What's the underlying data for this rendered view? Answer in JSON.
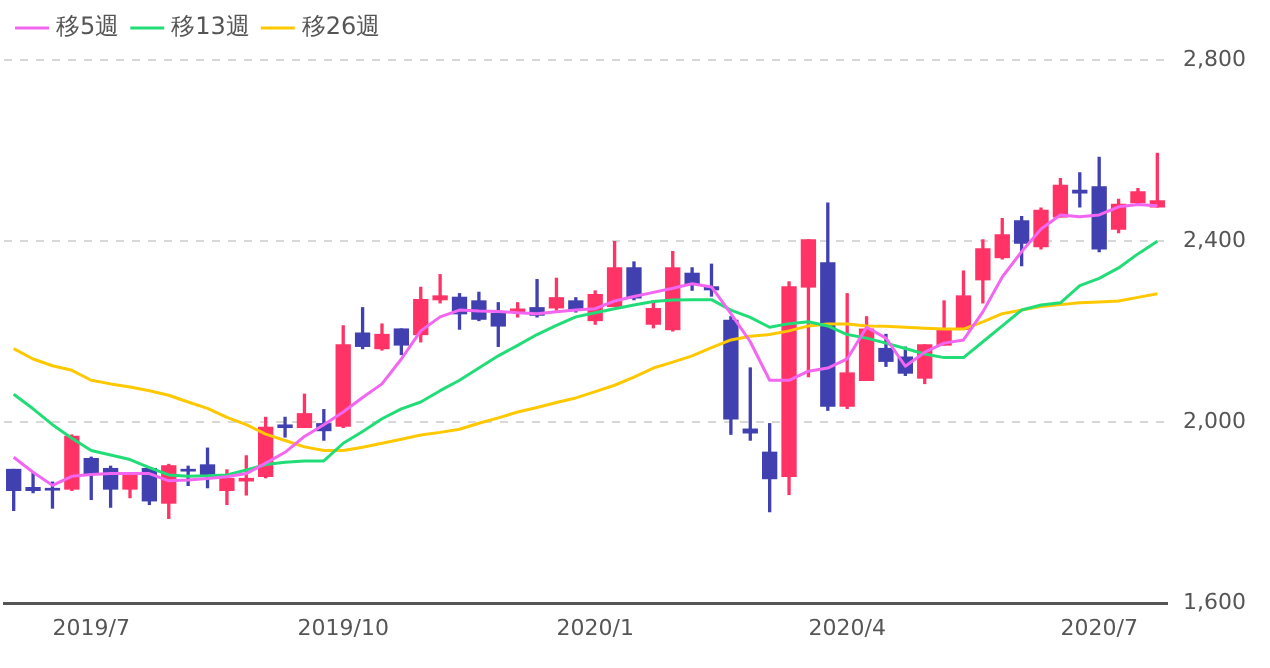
{
  "chart_data": {
    "type": "candlestick",
    "categories": [
      null,
      null,
      null,
      null,
      "2019/7",
      null,
      null,
      null,
      null,
      null,
      null,
      null,
      null,
      null,
      null,
      null,
      null,
      "2019/10",
      null,
      null,
      null,
      null,
      null,
      null,
      null,
      null,
      null,
      null,
      null,
      null,
      "2020/1",
      null,
      null,
      null,
      null,
      null,
      null,
      null,
      null,
      null,
      null,
      null,
      null,
      "2020/4",
      null,
      null,
      null,
      null,
      null,
      null,
      null,
      null,
      null,
      null,
      null,
      null,
      "2020/7",
      null,
      null,
      null
    ],
    "ohlc": [
      [
        1896,
        1896,
        1806,
        1850
      ],
      [
        1856,
        1887,
        1845,
        1850
      ],
      [
        1854,
        1868,
        1811,
        1851
      ],
      [
        1853,
        1972,
        1850,
        1969
      ],
      [
        1920,
        1923,
        1830,
        1887
      ],
      [
        1898,
        1903,
        1813,
        1853
      ],
      [
        1853,
        1887,
        1834,
        1887
      ],
      [
        1898,
        1898,
        1819,
        1827
      ],
      [
        1822,
        1907,
        1788,
        1904
      ],
      [
        1896,
        1903,
        1861,
        1893
      ],
      [
        1906,
        1943,
        1856,
        1884
      ],
      [
        1850,
        1895,
        1819,
        1876
      ],
      [
        1871,
        1926,
        1840,
        1876
      ],
      [
        1881,
        2011,
        1878,
        1989
      ],
      [
        1994,
        2011,
        1968,
        1989
      ],
      [
        1989,
        2062,
        1989,
        2019
      ],
      [
        1997,
        2028,
        1961,
        1982
      ],
      [
        1992,
        2213,
        1989,
        2171
      ],
      [
        2197,
        2253,
        2163,
        2168
      ],
      [
        2163,
        2217,
        2160,
        2194
      ],
      [
        2206,
        2206,
        2150,
        2171
      ],
      [
        2194,
        2298,
        2178,
        2271
      ],
      [
        2271,
        2326,
        2264,
        2279
      ],
      [
        2276,
        2284,
        2206,
        2240
      ],
      [
        2268,
        2287,
        2225,
        2228
      ],
      [
        2240,
        2264,
        2168,
        2213
      ],
      [
        2245,
        2264,
        2233,
        2250
      ],
      [
        2253,
        2315,
        2233,
        2237
      ],
      [
        2253,
        2318,
        2248,
        2275
      ],
      [
        2268,
        2275,
        2244,
        2250
      ],
      [
        2225,
        2290,
        2217,
        2282
      ],
      [
        2256,
        2399,
        2256,
        2341
      ],
      [
        2341,
        2354,
        2271,
        2275
      ],
      [
        2217,
        2268,
        2209,
        2251
      ],
      [
        2205,
        2377,
        2202,
        2341
      ],
      [
        2329,
        2341,
        2292,
        2306
      ],
      [
        2299,
        2349,
        2279,
        2293
      ],
      [
        2225,
        2233,
        1974,
        2008
      ],
      [
        1985,
        2120,
        1961,
        1977
      ],
      [
        1934,
        1997,
        1803,
        1876
      ],
      [
        1881,
        2310,
        1841,
        2299
      ],
      [
        2299,
        2403,
        2101,
        2403
      ],
      [
        2352,
        2484,
        2027,
        2036
      ],
      [
        2036,
        2284,
        2031,
        2109
      ],
      [
        2093,
        2233,
        2093,
        2206
      ],
      [
        2163,
        2194,
        2124,
        2135
      ],
      [
        2144,
        2166,
        2104,
        2109
      ],
      [
        2098,
        2171,
        2086,
        2171
      ],
      [
        2171,
        2268,
        2171,
        2206
      ],
      [
        2206,
        2334,
        2206,
        2279
      ],
      [
        2315,
        2403,
        2264,
        2383
      ],
      [
        2364,
        2450,
        2361,
        2414
      ],
      [
        2445,
        2454,
        2346,
        2396
      ],
      [
        2388,
        2473,
        2383,
        2468
      ],
      [
        2454,
        2538,
        2454,
        2523
      ],
      [
        2512,
        2551,
        2476,
        2507
      ],
      [
        2520,
        2585,
        2377,
        2383
      ],
      [
        2427,
        2492,
        2419,
        2481
      ],
      [
        2485,
        2516,
        2481,
        2509
      ],
      [
        2476,
        2594,
        2476,
        2489
      ]
    ],
    "colors": [
      "#4040b0",
      "#4040b0",
      "#4040b0",
      "#ff3366",
      "#4040b0",
      "#4040b0",
      "#ff3366",
      "#4040b0",
      "#ff3366",
      "#4040b0",
      "#4040b0",
      "#ff3366",
      "#ff3366",
      "#ff3366",
      "#4040b0",
      "#ff3366",
      "#4040b0",
      "#ff3366",
      "#4040b0",
      "#ff3366",
      "#4040b0",
      "#ff3366",
      "#ff3366",
      "#4040b0",
      "#4040b0",
      "#4040b0",
      "#ff3366",
      "#4040b0",
      "#ff3366",
      "#4040b0",
      "#ff3366",
      "#ff3366",
      "#4040b0",
      "#ff3366",
      "#ff3366",
      "#4040b0",
      "#4040b0",
      "#4040b0",
      "#4040b0",
      "#4040b0",
      "#ff3366",
      "#ff3366",
      "#4040b0",
      "#ff3366",
      "#ff3366",
      "#4040b0",
      "#4040b0",
      "#ff3366",
      "#ff3366",
      "#ff3366",
      "#ff3366",
      "#ff3366",
      "#4040b0",
      "#ff3366",
      "#ff3366",
      "#4040b0",
      "#4040b0",
      "#ff3366",
      "#ff3366",
      "#ff3366"
    ],
    "series": [
      {
        "name": "移5週",
        "type": "line",
        "color": "#f266f2",
        "values": [
          1923,
          1890,
          1861,
          1881,
          1885,
          1887,
          1887,
          1887,
          1871,
          1873,
          1876,
          1880,
          1887,
          1910,
          1934,
          1969,
          1995,
          2023,
          2055,
          2085,
          2140,
          2202,
          2233,
          2248,
          2246,
          2245,
          2242,
          2240,
          2244,
          2248,
          2251,
          2268,
          2278,
          2287,
          2296,
          2306,
          2299,
          2240,
          2178,
          2093,
          2093,
          2113,
          2120,
          2140,
          2210,
          2186,
          2124,
          2155,
          2175,
          2182,
          2244,
          2321,
          2377,
          2427,
          2458,
          2454,
          2458,
          2476,
          2481,
          2478
        ]
      },
      {
        "name": "移13週",
        "type": "line",
        "color": "#22dd77",
        "values": [
          2062,
          2030,
          1995,
          1965,
          1938,
          1928,
          1918,
          1900,
          1884,
          1881,
          1882,
          1884,
          1895,
          1907,
          1912,
          1915,
          1915,
          1954,
          1980,
          2008,
          2030,
          2045,
          2070,
          2093,
          2120,
          2147,
          2170,
          2194,
          2214,
          2233,
          2242,
          2251,
          2259,
          2267,
          2270,
          2271,
          2271,
          2248,
          2232,
          2210,
          2218,
          2222,
          2213,
          2194,
          2186,
          2175,
          2163,
          2151,
          2143,
          2143,
          2178,
          2213,
          2248,
          2259,
          2264,
          2302,
          2318,
          2341,
          2372,
          2400
        ]
      },
      {
        "name": "移26週",
        "type": "line",
        "color": "#ffc800",
        "values": [
          2163,
          2140,
          2125,
          2115,
          2093,
          2085,
          2078,
          2070,
          2060,
          2045,
          2031,
          2011,
          1995,
          1974,
          1960,
          1946,
          1938,
          1938,
          1945,
          1954,
          1963,
          1972,
          1978,
          1985,
          1998,
          2010,
          2023,
          2033,
          2044,
          2054,
          2068,
          2082,
          2100,
          2120,
          2133,
          2147,
          2165,
          2182,
          2190,
          2194,
          2202,
          2213,
          2217,
          2217,
          2213,
          2212,
          2210,
          2208,
          2206,
          2206,
          2222,
          2240,
          2248,
          2256,
          2260,
          2264,
          2266,
          2268,
          2276,
          2284
        ]
      }
    ],
    "ylim": [
      1600,
      2800
    ],
    "yticks": [
      {
        "value": 1600,
        "label": "1,600"
      },
      {
        "value": 2000,
        "label": "2,000"
      },
      {
        "value": 2400,
        "label": "2,400"
      },
      {
        "value": 2800,
        "label": "2,800"
      }
    ],
    "grid": "y",
    "legend": "top left"
  }
}
